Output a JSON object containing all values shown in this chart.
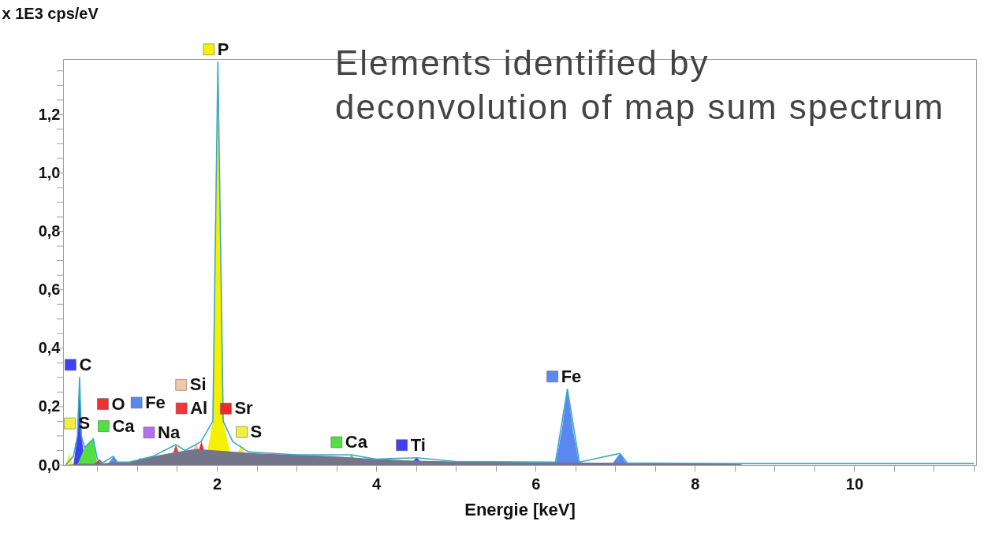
{
  "chart_data": {
    "type": "area",
    "xlabel": "Energie [keV]",
    "ylabel": "x 1E3 cps/eV",
    "annotations": [
      "Elements identified by deconvolution of map sum spectrum"
    ],
    "xlim": [
      0.07,
      11.53
    ],
    "ylim": [
      0,
      1.39
    ],
    "xticks": [
      {
        "value": 0.5,
        "label": null
      },
      {
        "value": 1,
        "label": null
      },
      {
        "value": 1.5,
        "label": null
      },
      2,
      {
        "value": 2.5,
        "label": null
      },
      {
        "value": 3,
        "label": null
      },
      {
        "value": 3.5,
        "label": null
      },
      4,
      {
        "value": 4.5,
        "label": null
      },
      {
        "value": 5,
        "label": null
      },
      {
        "value": 5.5,
        "label": null
      },
      6,
      {
        "value": 6.5,
        "label": null
      },
      {
        "value": 7,
        "label": null
      },
      {
        "value": 7.5,
        "label": null
      },
      8,
      {
        "value": 8.5,
        "label": null
      },
      {
        "value": 9,
        "label": null
      },
      {
        "value": 9.5,
        "label": null
      },
      10,
      {
        "value": 10.5,
        "label": null
      },
      {
        "value": 11,
        "label": null
      },
      {
        "value": 11.5,
        "label": null
      }
    ],
    "yticks": [
      {
        "value": 0,
        "label": "0,0"
      },
      {
        "value": 0.05,
        "label": null
      },
      {
        "value": 0.1,
        "label": null
      },
      {
        "value": 0.15,
        "label": null
      },
      {
        "value": 0.2,
        "label": "0,2"
      },
      {
        "value": 0.25,
        "label": null
      },
      {
        "value": 0.3,
        "label": null
      },
      {
        "value": 0.35,
        "label": null
      },
      {
        "value": 0.4,
        "label": "0,4"
      },
      {
        "value": 0.45,
        "label": null
      },
      {
        "value": 0.5,
        "label": null
      },
      {
        "value": 0.55,
        "label": null
      },
      {
        "value": 0.6,
        "label": "0,6"
      },
      {
        "value": 0.65,
        "label": null
      },
      {
        "value": 0.7,
        "label": null
      },
      {
        "value": 0.75,
        "label": null
      },
      {
        "value": 0.8,
        "label": "0,8"
      },
      {
        "value": 0.85,
        "label": null
      },
      {
        "value": 0.9,
        "label": null
      },
      {
        "value": 0.95,
        "label": null
      },
      {
        "value": 1.0,
        "label": "1,0"
      },
      {
        "value": 1.05,
        "label": null
      },
      {
        "value": 1.1,
        "label": null
      },
      {
        "value": 1.15,
        "label": null
      },
      {
        "value": 1.2,
        "label": "1,2"
      },
      {
        "value": 1.25,
        "label": null
      },
      {
        "value": 1.3,
        "label": null
      },
      {
        "value": 1.35,
        "label": null
      }
    ],
    "grid": false,
    "legend": "left",
    "series": [
      {
        "name": "P",
        "color": "#f5f000",
        "x": [
          1.85,
          1.95,
          2.0,
          2.013,
          2.03,
          2.08,
          2.2
        ],
        "values": [
          0,
          0.15,
          1.0,
          1.38,
          1.0,
          0.15,
          0
        ]
      },
      {
        "name": "C",
        "color": "#4040f0",
        "x": [
          0.2,
          0.25,
          0.277,
          0.3,
          0.35
        ],
        "values": [
          0,
          0.1,
          0.3,
          0.1,
          0
        ]
      },
      {
        "name": "S",
        "color": "#f0f040",
        "x": [
          0.1,
          0.15,
          0.2
        ],
        "values": [
          0,
          0.04,
          0
        ]
      },
      {
        "name": "Ca",
        "color": "#50e040",
        "x": [
          0.25,
          0.34,
          0.45,
          0.5
        ],
        "values": [
          0,
          0.06,
          0.09,
          0
        ]
      },
      {
        "name": "O",
        "color": "#f03030",
        "x": [
          0.45,
          0.525,
          0.6
        ],
        "values": [
          0,
          0.02,
          0
        ]
      },
      {
        "name": "Fe",
        "color": "#5a88f0",
        "x": [
          0.62,
          0.705,
          0.78
        ],
        "values": [
          0,
          0.03,
          0
        ]
      },
      {
        "name": "Na",
        "color": "#b070f0",
        "x": [
          0.95,
          1.04,
          1.12
        ],
        "values": [
          0,
          0.025,
          0
        ]
      },
      {
        "name": "Al",
        "color": "#f03838",
        "x": [
          1.4,
          1.487,
          1.57
        ],
        "values": [
          0,
          0.07,
          0
        ]
      },
      {
        "name": "Si",
        "color": "#f0c8a8",
        "x": [
          1.65,
          1.74,
          1.83
        ],
        "values": [
          0,
          0.08,
          0
        ]
      },
      {
        "name": "Sr",
        "color": "#f02828",
        "x": [
          1.72,
          1.806,
          1.9
        ],
        "values": [
          0,
          0.08,
          0
        ]
      },
      {
        "name": "S",
        "color": "#f0f040",
        "x": [
          2.2,
          2.307,
          2.4
        ],
        "values": [
          0,
          0.07,
          0
        ]
      },
      {
        "name": "Ca",
        "color": "#50e040",
        "x": [
          3.6,
          3.69,
          3.8
        ],
        "values": [
          0,
          0.035,
          0
        ]
      },
      {
        "name": "Ti",
        "color": "#4040f0",
        "x": [
          4.4,
          4.51,
          4.6
        ],
        "values": [
          0,
          0.025,
          0
        ]
      },
      {
        "name": "Fe",
        "color": "#5a88f0",
        "x": [
          6.25,
          6.33,
          6.4,
          6.47,
          6.55,
          6.95,
          7.06,
          7.15
        ],
        "values": [
          0,
          0.12,
          0.26,
          0.12,
          0,
          0,
          0.04,
          0
        ]
      },
      {
        "color": "#74748a",
        "x": [
          0.1,
          0.3,
          0.55,
          0.7,
          0.9,
          1.2,
          1.5,
          1.75,
          2.0,
          2.5,
          3.0,
          3.5,
          4.0,
          4.5,
          5.0,
          6.0,
          7.0,
          8.0,
          8.55,
          8.6
        ],
        "values": [
          0,
          0.005,
          0.005,
          0.01,
          0.01,
          0.03,
          0.045,
          0.055,
          0.05,
          0.04,
          0.035,
          0.03,
          0.02,
          0.015,
          0.012,
          0.01,
          0.008,
          0.006,
          0.005,
          0
        ]
      },
      {
        "type": "line",
        "color": "#3aa8c8",
        "x": [
          0.1,
          0.2,
          0.25,
          0.277,
          0.3,
          0.34,
          0.45,
          0.5,
          0.55,
          0.7,
          0.75,
          0.9,
          1.2,
          1.487,
          1.6,
          1.8,
          1.95,
          2.013,
          2.08,
          2.2,
          2.4,
          3.0,
          3.69,
          4.0,
          4.51,
          5.0,
          6.25,
          6.4,
          6.55,
          7.06,
          7.15,
          8.0,
          8.6,
          11.5
        ],
        "values": [
          0,
          0.03,
          0.1,
          0.3,
          0.1,
          0.06,
          0.09,
          0.02,
          0.005,
          0.03,
          0.01,
          0.01,
          0.03,
          0.07,
          0.05,
          0.08,
          0.15,
          1.38,
          0.15,
          0.08,
          0.045,
          0.035,
          0.035,
          0.02,
          0.025,
          0.012,
          0.01,
          0.26,
          0.01,
          0.04,
          0.007,
          0.006,
          0.005,
          0.005
        ]
      }
    ]
  }
}
